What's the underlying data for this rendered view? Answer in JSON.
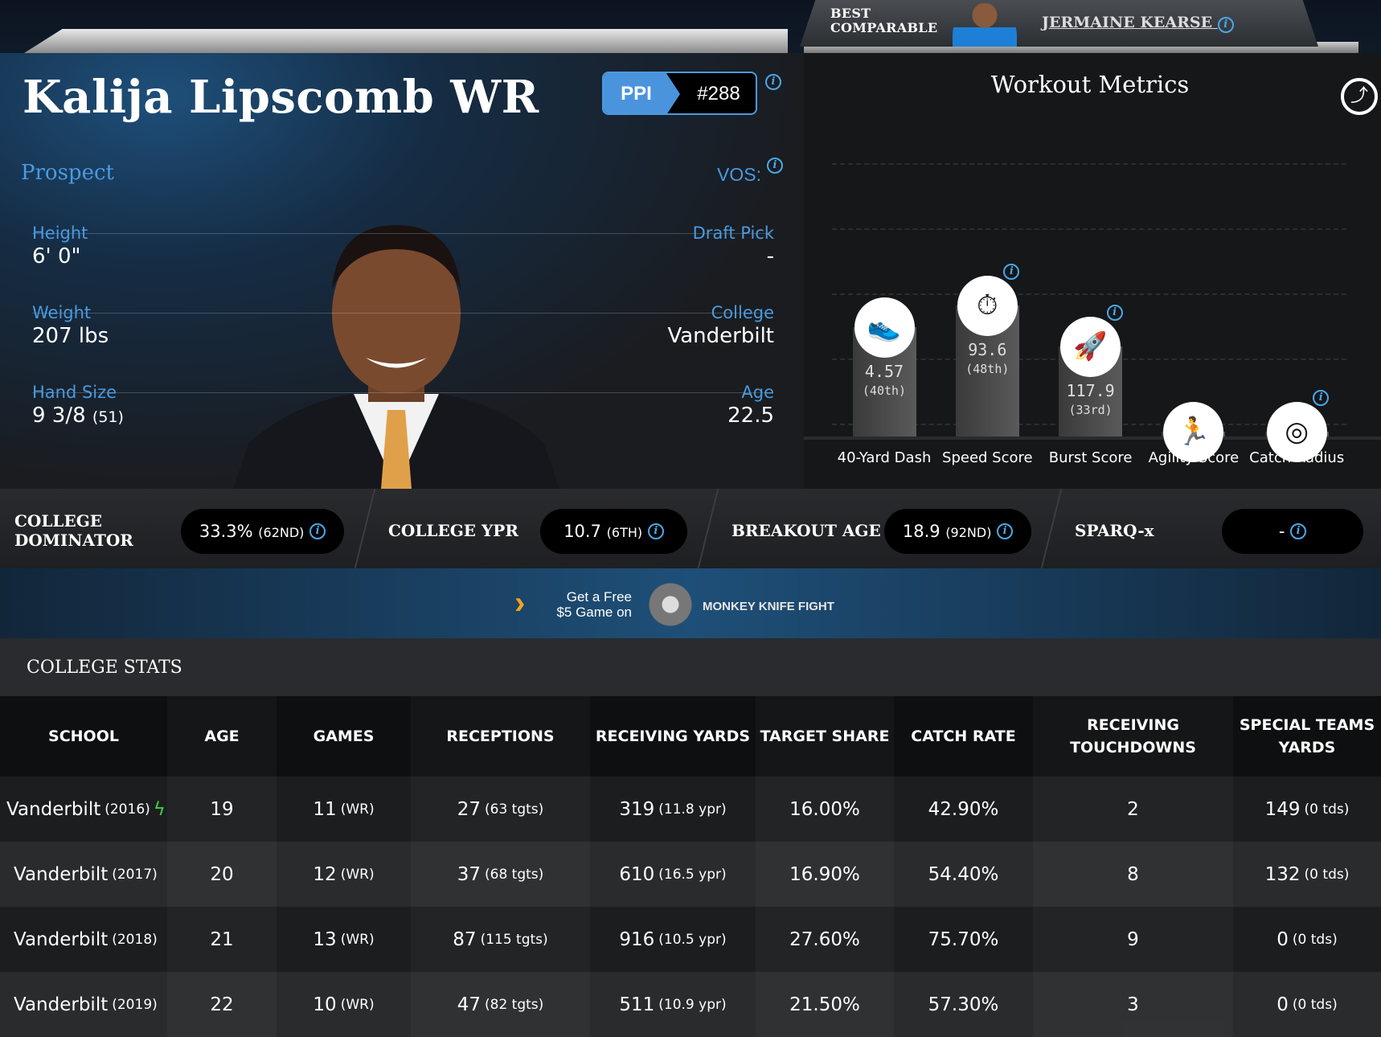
{
  "comparable": {
    "label_line1": "BEST",
    "label_line2": "COMPARABLE",
    "name": "JERMAINE KEARSE"
  },
  "player": {
    "name": "Kalija Lipscomb WR",
    "ppi_label": "PPI",
    "ppi_rank": "#288",
    "status": "Prospect",
    "vos_label": "VOS:",
    "height_label": "Height",
    "height": "6' 0\"",
    "weight_label": "Weight",
    "weight": "207 lbs",
    "hand_label": "Hand Size",
    "hand": "9 3/8",
    "hand_rank": "(51)",
    "draft_label": "Draft Pick",
    "draft": "-",
    "college_label": "College",
    "college": "Vanderbilt",
    "age_label": "Age",
    "age": "22.5"
  },
  "workout": {
    "title": "Workout Metrics",
    "metrics": [
      {
        "label": "40-Yard Dash",
        "value": "4.57",
        "pct_label": "(40th)",
        "percentile": 40,
        "icon": "shoe-icon",
        "info": false
      },
      {
        "label": "Speed Score",
        "value": "93.6",
        "pct_label": "(48th)",
        "percentile": 48,
        "icon": "stopwatch-icon",
        "info": true
      },
      {
        "label": "Burst Score",
        "value": "117.9",
        "pct_label": "(33rd)",
        "percentile": 33,
        "icon": "rocket-icon",
        "info": true
      },
      {
        "label": "Agility Score",
        "value": "",
        "pct_label": "",
        "percentile": null,
        "icon": "runner-icon",
        "info": false
      },
      {
        "label": "Catch Radius",
        "value": "",
        "pct_label": "",
        "percentile": null,
        "icon": "target-icon",
        "info": true
      }
    ]
  },
  "stats_bar": [
    {
      "label1": "COLLEGE",
      "label2": "DOMINATOR",
      "value": "33.3%",
      "rank": "(62ND)"
    },
    {
      "label1": "COLLEGE YPR",
      "label2": "",
      "value": "10.7",
      "rank": "(6TH)"
    },
    {
      "label1": "BREAKOUT AGE",
      "label2": "",
      "value": "18.9",
      "rank": "(92ND)"
    },
    {
      "label1": "SPARQ-x",
      "label2": "",
      "value": "-",
      "rank": ""
    }
  ],
  "banner": {
    "line1": "Get a Free",
    "line2": "$5 Game on",
    "brand": "MONKEY KNIFE FIGHT"
  },
  "college_stats": {
    "title": "COLLEGE STATS",
    "headers": [
      [
        "SCHOOL"
      ],
      [
        "AGE"
      ],
      [
        "GAMES"
      ],
      [
        "RECEPTIONS"
      ],
      [
        "RECEIVING YARDS"
      ],
      [
        "TARGET SHARE"
      ],
      [
        "CATCH RATE"
      ],
      [
        "RECEIVING",
        "TOUCHDOWNS"
      ],
      [
        "SPECIAL TEAMS",
        "YARDS"
      ]
    ],
    "rows": [
      [
        [
          "Vanderbilt",
          "(2016)"
        ],
        [
          "19",
          ""
        ],
        [
          "11",
          "(WR)"
        ],
        [
          "27",
          "(63 tgts)"
        ],
        [
          "319",
          "(11.8 ypr)"
        ],
        [
          "16.00%",
          ""
        ],
        [
          "42.90%",
          ""
        ],
        [
          "2",
          ""
        ],
        [
          "149",
          "(0 tds)"
        ]
      ],
      [
        [
          "Vanderbilt",
          "(2017)"
        ],
        [
          "20",
          ""
        ],
        [
          "12",
          "(WR)"
        ],
        [
          "37",
          "(68 tgts)"
        ],
        [
          "610",
          "(16.5 ypr)"
        ],
        [
          "16.90%",
          ""
        ],
        [
          "54.40%",
          ""
        ],
        [
          "8",
          ""
        ],
        [
          "132",
          "(0 tds)"
        ]
      ],
      [
        [
          "Vanderbilt",
          "(2018)"
        ],
        [
          "21",
          ""
        ],
        [
          "13",
          "(WR)"
        ],
        [
          "87",
          "(115 tgts)"
        ],
        [
          "916",
          "(10.5 ypr)"
        ],
        [
          "27.60%",
          ""
        ],
        [
          "75.70%",
          ""
        ],
        [
          "9",
          ""
        ],
        [
          "0",
          "(0 tds)"
        ]
      ],
      [
        [
          "Vanderbilt",
          "(2019)"
        ],
        [
          "22",
          ""
        ],
        [
          "10",
          "(WR)"
        ],
        [
          "47",
          "(82 tgts)"
        ],
        [
          "511",
          "(10.9 ypr)"
        ],
        [
          "21.50%",
          ""
        ],
        [
          "57.30%",
          ""
        ],
        [
          "3",
          ""
        ],
        [
          "0",
          "(0 tds)"
        ]
      ]
    ],
    "breakout_row": 0
  }
}
